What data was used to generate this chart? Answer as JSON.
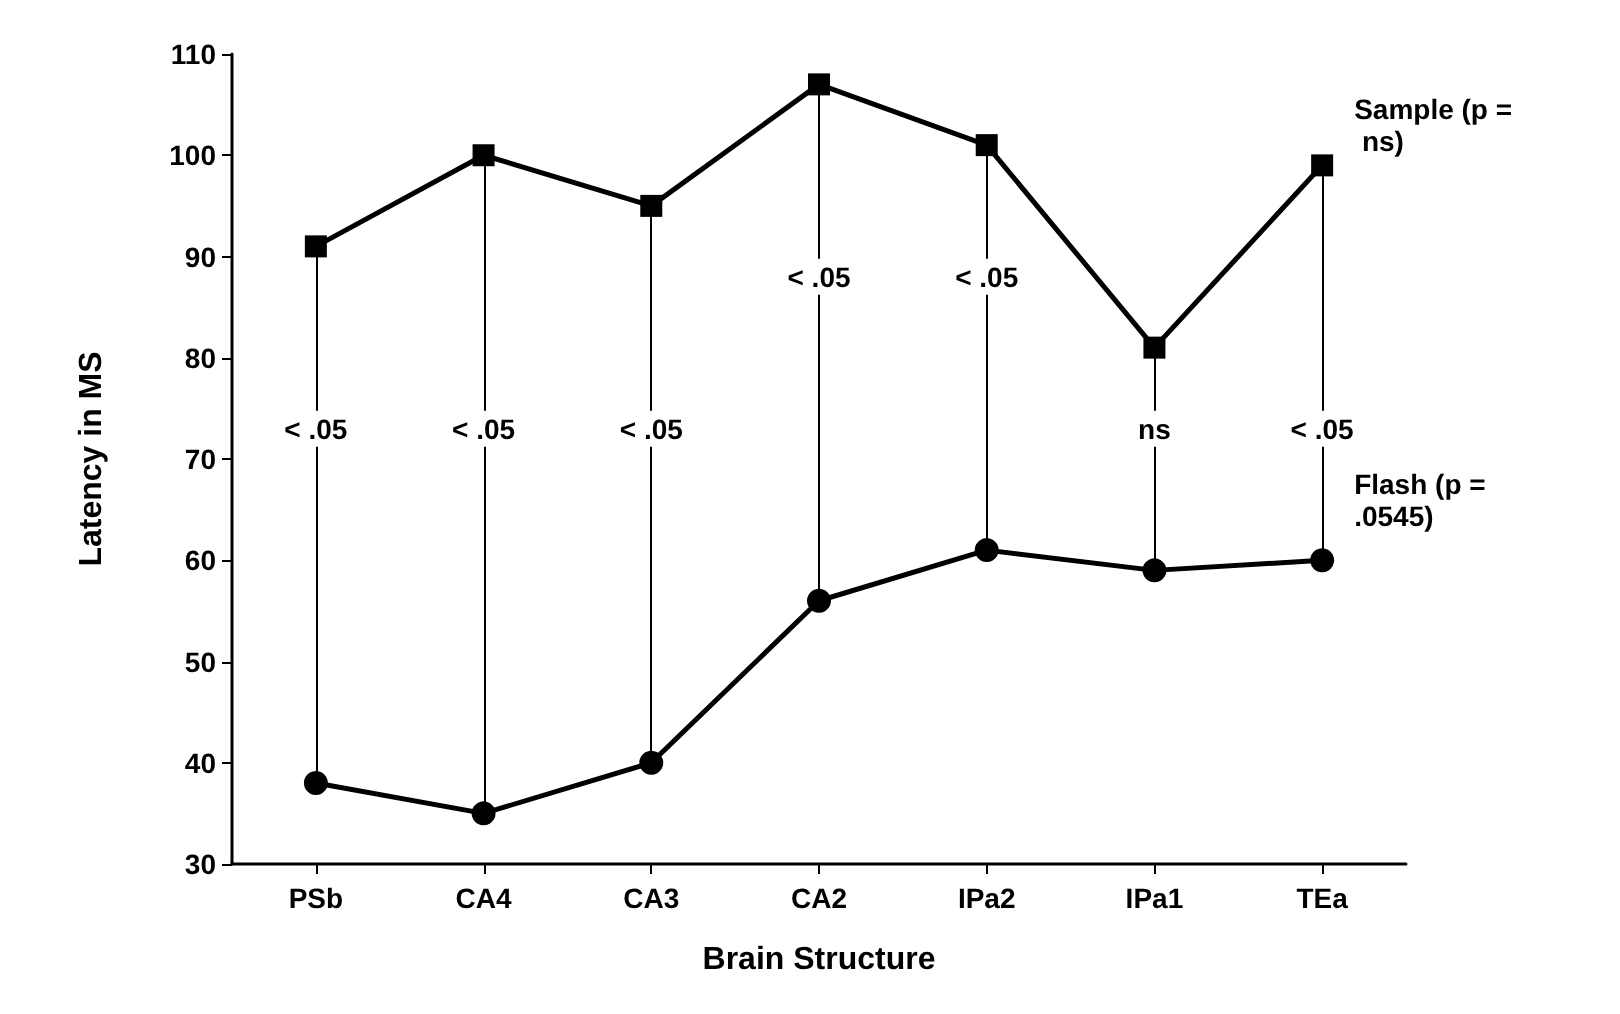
{
  "chart_data": {
    "type": "line",
    "xlabel": "Brain Structure",
    "ylabel": "Latency in MS",
    "categories": [
      "PSb",
      "CA4",
      "CA3",
      "CA2",
      "IPa2",
      "IPa1",
      "TEa"
    ],
    "series": [
      {
        "name": "Sample (p = ns)",
        "color": "#000000",
        "marker": "square",
        "values": [
          91,
          100,
          95,
          107,
          101,
          81,
          99
        ]
      },
      {
        "name": "Flash (p = .0545)",
        "color": "#000000",
        "marker": "circle",
        "values": [
          38,
          35,
          40,
          56,
          61,
          59,
          60
        ]
      }
    ],
    "ref_lines": [
      {
        "axis": "x",
        "value": "PSb"
      },
      {
        "axis": "x",
        "value": "CA4"
      },
      {
        "axis": "x",
        "value": "CA3"
      },
      {
        "axis": "x",
        "value": "CA2"
      },
      {
        "axis": "x",
        "value": "IPa2"
      },
      {
        "axis": "x",
        "value": "IPa1"
      },
      {
        "axis": "x",
        "value": "TEa"
      }
    ],
    "ylim": [
      30,
      110
    ],
    "yticks": [
      30,
      40,
      50,
      60,
      70,
      80,
      90,
      100,
      110
    ],
    "grid": false,
    "legend": false,
    "line_style": "solid",
    "annotations": [
      {
        "text": "< .05",
        "x": "PSb",
        "y": 73
      },
      {
        "text": "< .05",
        "x": "CA4",
        "y": 73
      },
      {
        "text": "< .05",
        "x": "CA3",
        "y": 73
      },
      {
        "text": "< .05",
        "x": "CA2",
        "y": 88
      },
      {
        "text": "< .05",
        "x": "IPa2",
        "y": 88
      },
      {
        "text": "ns",
        "x": "IPa1",
        "y": 73
      },
      {
        "text": "< .05",
        "x": "TEa",
        "y": 73
      }
    ]
  }
}
